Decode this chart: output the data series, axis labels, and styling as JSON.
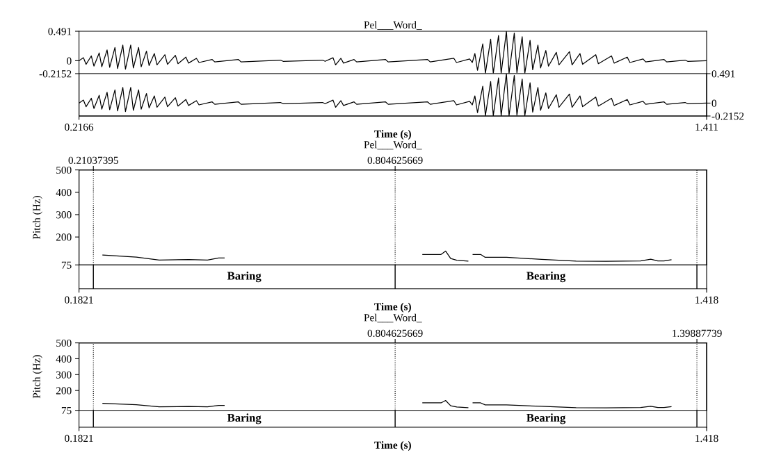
{
  "chart_data": [
    {
      "type": "line",
      "title": "Pel___Word_",
      "xlim": [
        0.2166,
        1.411
      ],
      "ylim": [
        -0.2152,
        0.491
      ],
      "yticks": [
        0.491,
        0,
        -0.2152
      ],
      "tick_labels": "y",
      "grid": false,
      "legend": false,
      "series": [
        {
          "color": "#000000",
          "x": [
            0.2166,
            0.225,
            0.23,
            0.24,
            0.245,
            0.255,
            0.26,
            0.27,
            0.275,
            0.285,
            0.29,
            0.3,
            0.305,
            0.315,
            0.32,
            0.33,
            0.335,
            0.345,
            0.35,
            0.36,
            0.365,
            0.38,
            0.385,
            0.4,
            0.405,
            0.42,
            0.425,
            0.44,
            0.445,
            0.47,
            0.475,
            0.52,
            0.525,
            0.6,
            0.605,
            0.68,
            0.685,
            0.7,
            0.705,
            0.715,
            0.72,
            0.74,
            0.745,
            0.8,
            0.805,
            0.88,
            0.885,
            0.93,
            0.935,
            0.96,
            0.965,
            0.97,
            0.975,
            0.985,
            0.99,
            1.0,
            1.005,
            1.015,
            1.02,
            1.03,
            1.035,
            1.045,
            1.05,
            1.06,
            1.065,
            1.075,
            1.08,
            1.09,
            1.095,
            1.105,
            1.11,
            1.125,
            1.13,
            1.15,
            1.155,
            1.17,
            1.175,
            1.2,
            1.205,
            1.23,
            1.235,
            1.26,
            1.265,
            1.29,
            1.295,
            1.33,
            1.335,
            1.37,
            1.375,
            1.411
          ],
          "values": [
            0,
            0.05,
            -0.06,
            0.08,
            -0.09,
            0.13,
            -0.1,
            0.18,
            -0.11,
            0.22,
            -0.13,
            0.26,
            -0.14,
            0.26,
            -0.12,
            0.22,
            -0.1,
            0.16,
            -0.08,
            0.12,
            -0.07,
            0.1,
            -0.06,
            0.09,
            -0.05,
            0.06,
            -0.04,
            0.04,
            -0.03,
            0.02,
            -0.02,
            0.02,
            -0.02,
            0.01,
            -0.01,
            0.01,
            -0.01,
            0.05,
            -0.07,
            0.04,
            -0.04,
            0.02,
            -0.02,
            0.02,
            -0.02,
            0.02,
            -0.02,
            0.04,
            -0.03,
            0.03,
            -0.03,
            0.12,
            -0.16,
            0.28,
            -0.21,
            0.36,
            -0.21,
            0.42,
            -0.21,
            0.491,
            -0.21,
            0.46,
            -0.2,
            0.4,
            -0.21,
            0.34,
            -0.15,
            0.26,
            -0.12,
            0.17,
            -0.09,
            0.14,
            -0.07,
            0.15,
            -0.07,
            0.12,
            -0.06,
            0.1,
            -0.05,
            0.08,
            -0.04,
            0.06,
            -0.03,
            0.03,
            -0.02,
            0.02,
            -0.02,
            0.01,
            -0.01,
            0
          ]
        }
      ]
    },
    {
      "type": "line",
      "xlabel": "Time (s)",
      "xlim": [
        0.2166,
        1.411
      ],
      "xticks": [
        0.2166,
        1.411
      ],
      "y2lim": [
        -0.2152,
        0.491
      ],
      "y2ticks": [
        0.491,
        0,
        -0.2152
      ],
      "grid": false,
      "legend": false,
      "series": [
        {
          "color": "#000000",
          "axis": "y2",
          "x": [
            0.2166,
            0.225,
            0.23,
            0.24,
            0.245,
            0.255,
            0.26,
            0.27,
            0.275,
            0.285,
            0.29,
            0.3,
            0.305,
            0.315,
            0.32,
            0.33,
            0.335,
            0.345,
            0.35,
            0.36,
            0.365,
            0.38,
            0.385,
            0.4,
            0.405,
            0.42,
            0.425,
            0.44,
            0.445,
            0.47,
            0.475,
            0.52,
            0.525,
            0.6,
            0.605,
            0.68,
            0.685,
            0.7,
            0.705,
            0.715,
            0.72,
            0.74,
            0.745,
            0.8,
            0.805,
            0.88,
            0.885,
            0.93,
            0.935,
            0.96,
            0.965,
            0.97,
            0.975,
            0.985,
            0.99,
            1.0,
            1.005,
            1.015,
            1.02,
            1.03,
            1.035,
            1.045,
            1.05,
            1.06,
            1.065,
            1.075,
            1.08,
            1.09,
            1.095,
            1.105,
            1.11,
            1.125,
            1.13,
            1.15,
            1.155,
            1.17,
            1.175,
            1.2,
            1.205,
            1.23,
            1.235,
            1.26,
            1.265,
            1.29,
            1.295,
            1.33,
            1.335,
            1.37,
            1.375,
            1.411
          ],
          "values": [
            0,
            0.05,
            -0.06,
            0.08,
            -0.09,
            0.13,
            -0.1,
            0.18,
            -0.11,
            0.22,
            -0.13,
            0.26,
            -0.14,
            0.26,
            -0.12,
            0.22,
            -0.1,
            0.16,
            -0.08,
            0.12,
            -0.07,
            0.1,
            -0.06,
            0.09,
            -0.05,
            0.06,
            -0.04,
            0.04,
            -0.03,
            0.02,
            -0.02,
            0.02,
            -0.02,
            0.01,
            -0.01,
            0.01,
            -0.01,
            0.05,
            -0.07,
            0.04,
            -0.04,
            0.02,
            -0.02,
            0.02,
            -0.02,
            0.02,
            -0.02,
            0.04,
            -0.03,
            0.03,
            -0.03,
            0.12,
            -0.16,
            0.28,
            -0.21,
            0.36,
            -0.21,
            0.42,
            -0.21,
            0.491,
            -0.21,
            0.46,
            -0.2,
            0.4,
            -0.21,
            0.34,
            -0.15,
            0.26,
            -0.12,
            0.17,
            -0.09,
            0.14,
            -0.07,
            0.15,
            -0.07,
            0.12,
            -0.06,
            0.1,
            -0.05,
            0.08,
            -0.04,
            0.06,
            -0.03,
            0.03,
            -0.02,
            0.02,
            -0.02,
            0.01,
            -0.01,
            0
          ]
        }
      ]
    },
    {
      "type": "line",
      "title": "Pel___Word_",
      "ylabel": "Pitch (Hz)",
      "xlabel": "Time (s)",
      "xlim": [
        0.1821,
        1.418
      ],
      "xticks": [
        0.1821,
        1.418
      ],
      "x2lim": [
        0.1821,
        1.418
      ],
      "x2ticks": [
        0.21037395,
        0.804625669
      ],
      "ylim": [
        75,
        500
      ],
      "yticks": [
        75,
        200,
        300,
        400,
        500
      ],
      "grid": false,
      "legend": false,
      "ref_lines": [
        {
          "axis": "x",
          "value": 0.21037395,
          "line_style": "dotted",
          "color": "#000000"
        },
        {
          "axis": "x",
          "value": 0.804625669,
          "line_style": "dotted",
          "color": "#000000"
        },
        {
          "axis": "x",
          "value": 1.39887739,
          "line_style": "dotted",
          "color": "#000000"
        }
      ],
      "annotations": [
        "Baring",
        "Bearing"
      ],
      "series": [
        {
          "color": "#000000",
          "x": [
            0.229,
            0.295,
            0.34,
            0.398,
            0.435,
            0.457,
            0.468,
            0.6,
            0.859,
            0.895,
            0.904,
            0.914,
            0.926,
            0.948,
            0.953,
            0.958,
            0.973,
            0.982,
            1.024,
            1.093,
            1.161,
            1.22,
            1.288,
            1.308,
            1.322,
            1.334,
            1.348
          ],
          "values": [
            119,
            110,
            97,
            99,
            97,
            106,
            106,
            null,
            122,
            122,
            137,
            104,
            96,
            92,
            null,
            122,
            122,
            109,
            109,
            100,
            92,
            91,
            93,
            101,
            93,
            93,
            98
          ]
        }
      ]
    },
    {
      "type": "line",
      "title": "Pel___Word_",
      "ylabel": "Pitch (Hz)",
      "xlabel": "Time (s)",
      "xlim": [
        0.1821,
        1.418
      ],
      "xticks": [
        0.1821,
        1.418
      ],
      "x2lim": [
        0.1821,
        1.418
      ],
      "x2ticks": [
        0.804625669,
        1.39887739
      ],
      "ylim": [
        75,
        500
      ],
      "yticks": [
        75,
        200,
        300,
        400,
        500
      ],
      "grid": false,
      "legend": false,
      "ref_lines": [
        {
          "axis": "x",
          "value": 0.21037395,
          "line_style": "dotted",
          "color": "#000000"
        },
        {
          "axis": "x",
          "value": 0.804625669,
          "line_style": "dotted",
          "color": "#000000"
        },
        {
          "axis": "x",
          "value": 1.39887739,
          "line_style": "dotted",
          "color": "#000000"
        }
      ],
      "annotations": [
        "Baring",
        "Bearing"
      ],
      "series": [
        {
          "color": "#000000",
          "x": [
            0.229,
            0.295,
            0.34,
            0.398,
            0.435,
            0.457,
            0.468,
            0.6,
            0.859,
            0.895,
            0.904,
            0.914,
            0.926,
            0.948,
            0.953,
            0.958,
            0.973,
            0.982,
            1.024,
            1.093,
            1.161,
            1.22,
            1.288,
            1.308,
            1.322,
            1.334,
            1.348
          ],
          "values": [
            119,
            110,
            97,
            99,
            97,
            106,
            106,
            null,
            122,
            122,
            137,
            104,
            96,
            92,
            null,
            122,
            122,
            109,
            109,
            100,
            92,
            91,
            93,
            101,
            93,
            93,
            98
          ]
        }
      ]
    }
  ]
}
